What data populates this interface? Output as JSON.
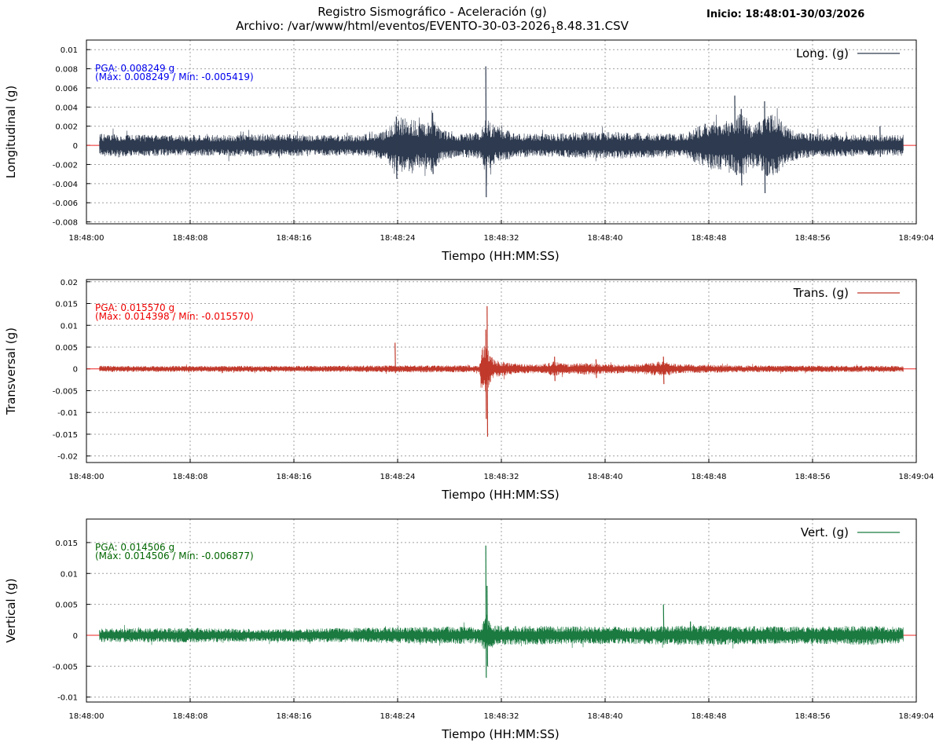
{
  "header": {
    "title": "Registro Sismográfico - Aceleración (g)",
    "file_prefix": "Archivo: /var/www/html/eventos/EVENTO-30-03-2026",
    "file_subscript": "1",
    "file_suffix": "8.48.31.CSV",
    "start_label": "Inicio: 18:48:01-30/03/2026"
  },
  "chart_data": [
    {
      "type": "line",
      "ylabel": "Longitudinal (g)",
      "xlabel": "Tiempo (HH:MM:SS)",
      "legend": "Long. (g)",
      "legend_position": "top-right",
      "color": "#2e3a4f",
      "ylim": [
        -0.0082,
        0.011
      ],
      "yticks": [
        0.01,
        0.008,
        0.006,
        0.004,
        0.002,
        0,
        -0.002,
        -0.004,
        -0.006,
        -0.008
      ],
      "ytick_labels": [
        "0.01",
        "0.008",
        "0.006",
        "0.004",
        "0.002",
        "0",
        "-0.002",
        "-0.004",
        "-0.006",
        "-0.008"
      ],
      "pga_text": "PGA: 0.008249 g",
      "maxmin_text": "(Máx: 0.008249 / Mín: -0.005419)",
      "annotation_color": "#0000ee",
      "max": 0.008249,
      "min": -0.005419,
      "peak_time_s": 30.8,
      "envelope": [
        [
          1,
          0.0012
        ],
        [
          5,
          0.0011
        ],
        [
          10,
          0.0011
        ],
        [
          14,
          0.0012
        ],
        [
          18,
          0.0011
        ],
        [
          21,
          0.0011
        ],
        [
          23,
          0.0015
        ],
        [
          23.8,
          0.0028
        ],
        [
          24.6,
          0.003
        ],
        [
          25.5,
          0.0026
        ],
        [
          26,
          0.0022
        ],
        [
          26.6,
          0.003
        ],
        [
          27.3,
          0.0018
        ],
        [
          28.5,
          0.0012
        ],
        [
          30.4,
          0.0014
        ],
        [
          30.8,
          0.003
        ],
        [
          31.3,
          0.0022
        ],
        [
          33,
          0.0013
        ],
        [
          36,
          0.0012
        ],
        [
          38,
          0.0014
        ],
        [
          41,
          0.0014
        ],
        [
          43,
          0.0013
        ],
        [
          46,
          0.0012
        ],
        [
          47.5,
          0.0022
        ],
        [
          48.5,
          0.0027
        ],
        [
          49.8,
          0.0025
        ],
        [
          50.5,
          0.0038
        ],
        [
          51.2,
          0.0022
        ],
        [
          52,
          0.0026
        ],
        [
          52.6,
          0.0035
        ],
        [
          53.3,
          0.003
        ],
        [
          54,
          0.002
        ],
        [
          55,
          0.0014
        ],
        [
          57,
          0.0012
        ],
        [
          61,
          0.0011
        ],
        [
          63,
          0.0011
        ]
      ],
      "events": [
        [
          23.9,
          0.003,
          -0.0035
        ],
        [
          26.7,
          0.0034,
          -0.003
        ],
        [
          30.8,
          0.008249,
          -0.005419
        ],
        [
          50,
          0.0052,
          -0.0028
        ],
        [
          50.5,
          0.0038,
          -0.0042
        ],
        [
          52.3,
          0.0046,
          -0.005
        ],
        [
          61.2,
          0.002,
          -0.0012
        ]
      ],
      "grid": true,
      "xlim": [
        0,
        64
      ],
      "xticks": [
        0,
        8,
        16,
        24,
        32,
        40,
        48,
        56,
        64
      ],
      "xtick_labels": [
        "18:48:00",
        "18:48:08",
        "18:48:16",
        "18:48:24",
        "18:48:32",
        "18:48:40",
        "18:48:48",
        "18:48:56",
        "18:49:04"
      ],
      "signal_range_s": [
        1,
        63
      ]
    },
    {
      "type": "line",
      "ylabel": "Transversal (g)",
      "xlabel": "Tiempo (HH:MM:SS)",
      "legend": "Trans. (g)",
      "legend_position": "top-right",
      "color": "#c0392b",
      "ylim": [
        -0.0215,
        0.0205
      ],
      "yticks": [
        0.02,
        0.015,
        0.01,
        0.005,
        0,
        -0.005,
        -0.01,
        -0.015,
        -0.02
      ],
      "ytick_labels": [
        "0.02",
        "0.015",
        "0.01",
        "0.005",
        "0",
        "-0.005",
        "-0.01",
        "-0.015",
        "-0.02"
      ],
      "pga_text": "PGA: 0.015570 g",
      "maxmin_text": "(Máx: 0.014398 / Mín: -0.015570)",
      "annotation_color": "#ee0000",
      "max": 0.014398,
      "min": -0.01557,
      "peak_time_s": 30.9,
      "envelope": [
        [
          1,
          0.0007
        ],
        [
          10,
          0.0007
        ],
        [
          20,
          0.0007
        ],
        [
          23,
          0.0008
        ],
        [
          30.3,
          0.0008
        ],
        [
          30.6,
          0.006
        ],
        [
          31,
          0.0045
        ],
        [
          31.5,
          0.002
        ],
        [
          33,
          0.0012
        ],
        [
          35,
          0.001
        ],
        [
          36,
          0.0018
        ],
        [
          37,
          0.0011
        ],
        [
          38.5,
          0.0014
        ],
        [
          40,
          0.0011
        ],
        [
          42,
          0.001
        ],
        [
          44.5,
          0.0018
        ],
        [
          45.5,
          0.0011
        ],
        [
          50,
          0.0008
        ],
        [
          63,
          0.0007
        ]
      ],
      "events": [
        [
          23.8,
          0.006,
          -0.001
        ],
        [
          30.8,
          0.009,
          -0.0115
        ],
        [
          30.9,
          0.014398,
          -0.01557
        ],
        [
          36.1,
          0.0028,
          -0.0028
        ],
        [
          39.3,
          0.0022,
          -0.0021
        ],
        [
          44.5,
          0.0028,
          -0.0035
        ]
      ],
      "grid": true,
      "xlim": [
        0,
        64
      ],
      "xticks": [
        0,
        8,
        16,
        24,
        32,
        40,
        48,
        56,
        64
      ],
      "xtick_labels": [
        "18:48:00",
        "18:48:08",
        "18:48:16",
        "18:48:24",
        "18:48:32",
        "18:48:40",
        "18:48:48",
        "18:48:56",
        "18:49:04"
      ],
      "signal_range_s": [
        1,
        63
      ]
    },
    {
      "type": "line",
      "ylabel": "Vertical (g)",
      "xlabel": "Tiempo (HH:MM:SS)",
      "legend": "Vert. (g)",
      "legend_position": "top-right",
      "color": "#1a7a40",
      "ylim": [
        -0.0108,
        0.0188
      ],
      "yticks": [
        0.015,
        0.01,
        0.005,
        0,
        -0.005,
        -0.01
      ],
      "ytick_labels": [
        "0.015",
        "0.01",
        "0.005",
        "0",
        "-0.005",
        "-0.01"
      ],
      "pga_text": "PGA: 0.014506 g",
      "maxmin_text": "(Máx: 0.014506 / Mín: -0.006877)",
      "annotation_color": "#006600",
      "max": 0.014506,
      "min": -0.006877,
      "peak_time_s": 30.8,
      "envelope": [
        [
          1,
          0.0011
        ],
        [
          8,
          0.0012
        ],
        [
          14,
          0.001
        ],
        [
          20,
          0.0012
        ],
        [
          24,
          0.0013
        ],
        [
          28,
          0.0014
        ],
        [
          30.4,
          0.0014
        ],
        [
          30.8,
          0.003
        ],
        [
          31.5,
          0.0016
        ],
        [
          36,
          0.0015
        ],
        [
          42,
          0.0014
        ],
        [
          46,
          0.0016
        ],
        [
          50,
          0.0015
        ],
        [
          56,
          0.0014
        ],
        [
          60,
          0.0016
        ],
        [
          63,
          0.0013
        ]
      ],
      "events": [
        [
          30.8,
          0.014506,
          -0.006877
        ],
        [
          30.9,
          0.008,
          -0.005
        ],
        [
          44.5,
          0.005,
          -0.0015
        ]
      ],
      "grid": true,
      "xlim": [
        0,
        64
      ],
      "xticks": [
        0,
        8,
        16,
        24,
        32,
        40,
        48,
        56,
        64
      ],
      "xtick_labels": [
        "18:48:00",
        "18:48:08",
        "18:48:16",
        "18:48:24",
        "18:48:32",
        "18:48:40",
        "18:48:48",
        "18:48:56",
        "18:49:04"
      ],
      "signal_range_s": [
        1,
        63
      ]
    }
  ]
}
